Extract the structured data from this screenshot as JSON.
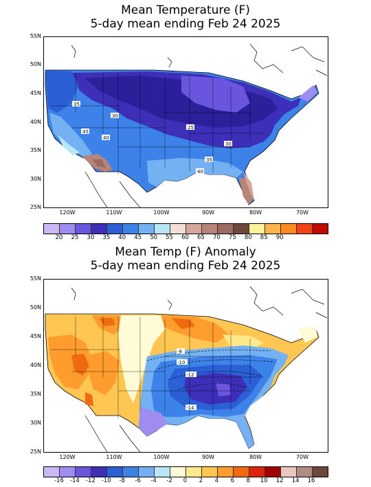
{
  "top": {
    "title1": "Mean Temperature (F)",
    "title2": "5-day mean ending Feb 24 2025",
    "lat_labels": [
      "55N",
      "50N",
      "45N",
      "40N",
      "35N",
      "30N",
      "25N"
    ],
    "lon_labels": [
      "120W",
      "110W",
      "100W",
      "90W",
      "80W",
      "70W"
    ],
    "contour_labels": [
      "35",
      "30",
      "45",
      "40",
      "25",
      "30",
      "35",
      "40"
    ],
    "colorbar_colors": [
      "#c9b8f4",
      "#9f8cf0",
      "#6a55de",
      "#3d2fb8",
      "#2b5fd6",
      "#3c82e8",
      "#73b1f2",
      "#b8e6f7",
      "#f1ded6",
      "#d6a69a",
      "#b88478",
      "#9c6a60",
      "#6e463c",
      "#fff29a",
      "#ffb54a",
      "#ff8a1e",
      "#f04214",
      "#c00b00"
    ],
    "colorbar_labels": [
      "20",
      "25",
      "30",
      "35",
      "40",
      "45",
      "50",
      "55",
      "60",
      "65",
      "70",
      "75",
      "80",
      "85",
      "90"
    ]
  },
  "bottom": {
    "title1": "Mean Temp (F) Anomaly",
    "title2": "5-day mean ending Feb 24 2025",
    "lat_labels": [
      "55N",
      "50N",
      "45N",
      "40N",
      "35N",
      "30N",
      "25N"
    ],
    "lon_labels": [
      "120W",
      "110W",
      "100W",
      "90W",
      "80W",
      "70W"
    ],
    "contour_labels": [
      "-8",
      "-10",
      "-12",
      "-14"
    ],
    "colorbar_colors": [
      "#c9b8f4",
      "#9f8cf0",
      "#6a55de",
      "#3d2fb8",
      "#2b5fd6",
      "#3c82e8",
      "#73b1f2",
      "#b8e6f7",
      "#fffbd6",
      "#ffe98a",
      "#ffc752",
      "#ff9c2e",
      "#f06a10",
      "#e0240a",
      "#a30000",
      "#e8c8c0",
      "#b08c84",
      "#6e463c"
    ],
    "colorbar_labels": [
      "-16",
      "-14",
      "-12",
      "-10",
      "-8",
      "-6",
      "-4",
      "-2",
      "0",
      "2",
      "4",
      "6",
      "8",
      "10",
      "12",
      "14",
      "16"
    ]
  }
}
